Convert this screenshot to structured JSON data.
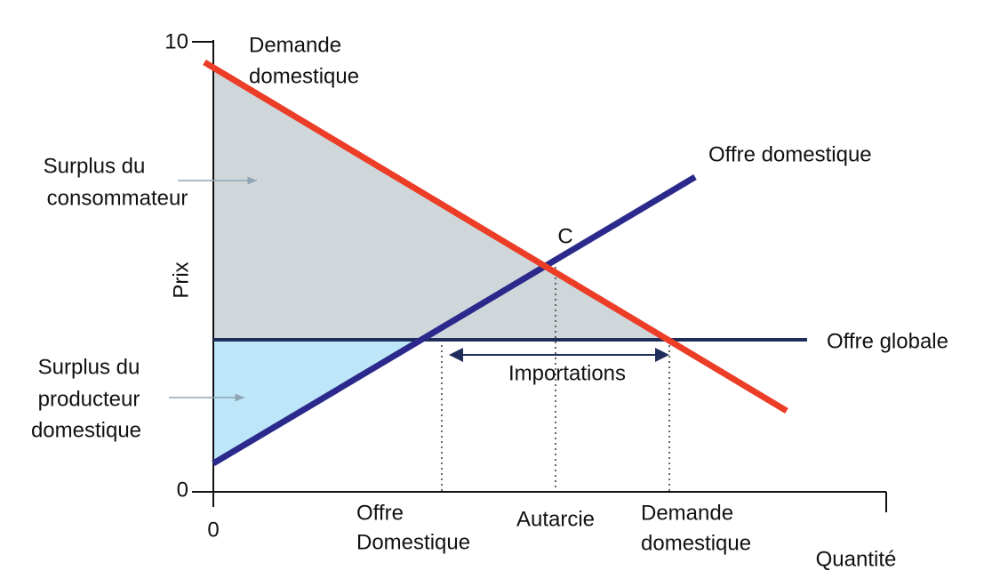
{
  "axes": {
    "y_label": "Prix",
    "x_label": "Quantité",
    "y_top": "10",
    "y_origin": "0",
    "x_origin": "0"
  },
  "curves": {
    "demand": [
      "Demande",
      "domestique"
    ],
    "supply": "Offre domestique",
    "world_supply": "Offre globale",
    "equilibrium": "C"
  },
  "areas": {
    "consumer_surplus": [
      "Surplus du",
      "consommateur"
    ],
    "producer_surplus": [
      "Surplus du",
      "producteur",
      "domestique"
    ]
  },
  "imports": "Importations",
  "x_marks": {
    "domestic_supply": [
      "Offre",
      "Domestique"
    ],
    "autarky": "Autarcie",
    "domestic_demand": [
      "Demande",
      "domestique"
    ]
  }
}
